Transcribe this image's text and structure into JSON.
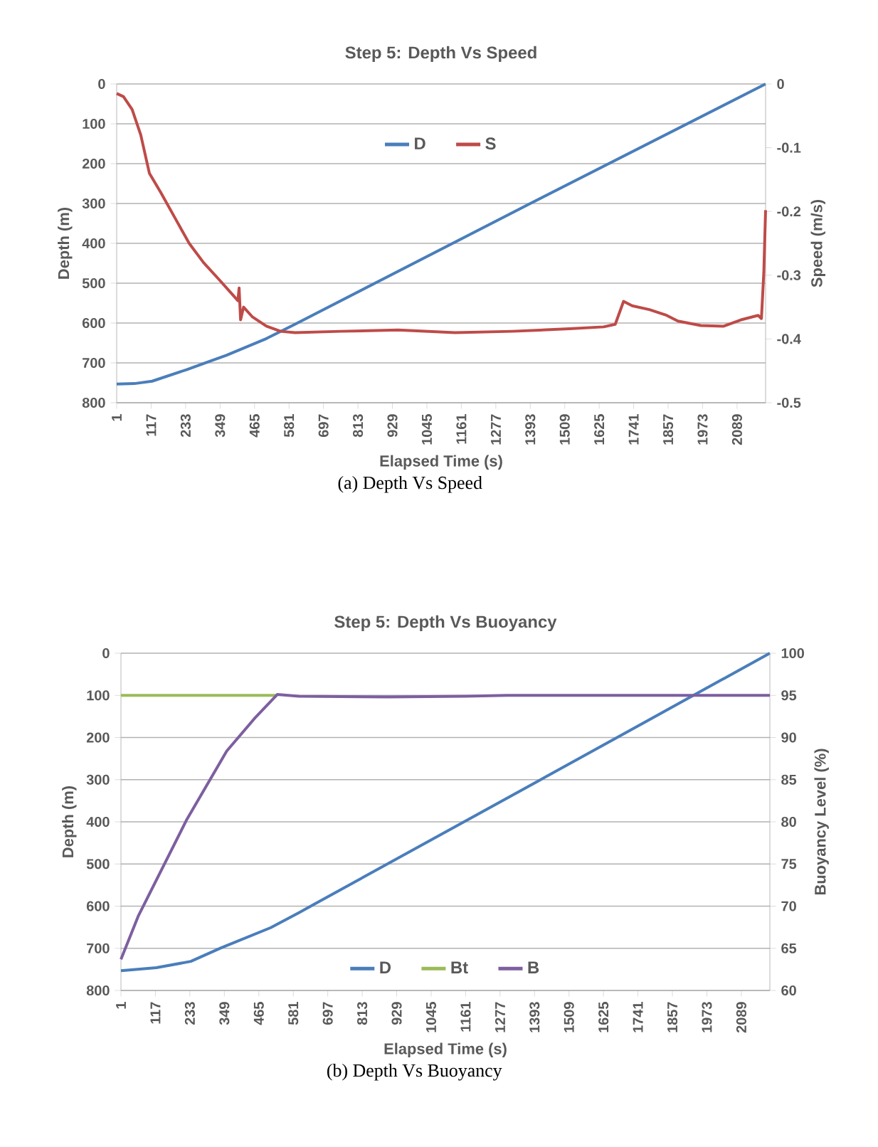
{
  "chart_data": [
    {
      "type": "line",
      "title": "Step 5: Depth Vs Speed",
      "xlabel": "Elapsed Time (s)",
      "ylabel": "Depth (m)",
      "y2label": "Speed (m/s)",
      "annotations": [
        "(a) Depth Vs Speed"
      ],
      "xlim": [
        1,
        2185
      ],
      "xticks": [
        1,
        117,
        233,
        349,
        465,
        581,
        697,
        813,
        929,
        1045,
        1161,
        1277,
        1393,
        1509,
        1625,
        1741,
        1857,
        1973,
        2089
      ],
      "ylim": [
        800,
        0
      ],
      "yticks": [
        0,
        100,
        200,
        300,
        400,
        500,
        600,
        700,
        800
      ],
      "y2lim": [
        -0.5,
        0
      ],
      "y2ticks": [
        -0.5,
        -0.4,
        -0.3,
        -0.2,
        -0.1,
        0
      ],
      "grid": "y",
      "legend": "top",
      "series": [
        {
          "name": "D",
          "color": "#4a7ebb",
          "x": [
            1,
            60,
            120,
            236,
            370,
            505,
            601,
            1393,
            2185
          ],
          "values": [
            753,
            752,
            746,
            717,
            681,
            639,
            603,
            300,
            0
          ]
        },
        {
          "name": "S",
          "color": "#be4b48",
          "axis": "y2",
          "x": [
            1,
            24,
            53,
            82,
            111,
            149,
            197,
            245,
            293,
            342,
            390,
            409,
            413,
            418,
            428,
            457,
            505,
            553,
            601,
            755,
            948,
            1140,
            1332,
            1525,
            1640,
            1679,
            1707,
            1736,
            1794,
            1852,
            1890,
            1967,
            2044,
            2102,
            2160,
            2171,
            2179,
            2185
          ],
          "values": [
            -0.015,
            -0.02,
            -0.04,
            -0.08,
            -0.14,
            -0.17,
            -0.21,
            -0.25,
            -0.28,
            -0.305,
            -0.33,
            -0.34,
            -0.32,
            -0.37,
            -0.35,
            -0.365,
            -0.38,
            -0.388,
            -0.39,
            -0.388,
            -0.386,
            -0.39,
            -0.388,
            -0.384,
            -0.381,
            -0.377,
            -0.341,
            -0.348,
            -0.354,
            -0.363,
            -0.372,
            -0.379,
            -0.38,
            -0.37,
            -0.363,
            -0.368,
            -0.296,
            -0.198
          ]
        }
      ]
    },
    {
      "type": "line",
      "title": "Step 5: Depth Vs Buoyancy",
      "xlabel": "Elapsed Time (s)",
      "ylabel": "Depth (m)",
      "y2label": "Buoyancy Level (%)",
      "annotations": [
        "(b) Depth Vs Buoyancy"
      ],
      "xlim": [
        1,
        2185
      ],
      "xticks": [
        1,
        117,
        233,
        349,
        465,
        581,
        697,
        813,
        929,
        1045,
        1161,
        1277,
        1393,
        1509,
        1625,
        1741,
        1857,
        1973,
        2089
      ],
      "ylim": [
        800,
        0
      ],
      "yticks": [
        0,
        100,
        200,
        300,
        400,
        500,
        600,
        700,
        800
      ],
      "y2lim": [
        60,
        100
      ],
      "y2ticks": [
        60,
        65,
        70,
        75,
        80,
        85,
        90,
        95,
        100
      ],
      "grid": "y",
      "legend": "bottom",
      "series": [
        {
          "name": "D",
          "color": "#4a7ebb",
          "x": [
            1,
            120,
            236,
            338,
            505,
            601,
            1393,
            2185
          ],
          "values": [
            753,
            746,
            731,
            699,
            651,
            615,
            308,
            0
          ]
        },
        {
          "name": "Bt",
          "color": "#9bbb59",
          "axis": "y2",
          "x": [
            1,
            527
          ],
          "values": [
            95,
            95
          ]
        },
        {
          "name": "B",
          "color": "#7d5fa0",
          "axis": "y2",
          "x": [
            1,
            59,
            223,
            357,
            454,
            527,
            600,
            900,
            1161,
            1300,
            2185
          ],
          "values": [
            63.7,
            68.8,
            80.3,
            88.4,
            92.4,
            95.1,
            94.9,
            94.8,
            94.9,
            95,
            95
          ]
        }
      ]
    }
  ]
}
